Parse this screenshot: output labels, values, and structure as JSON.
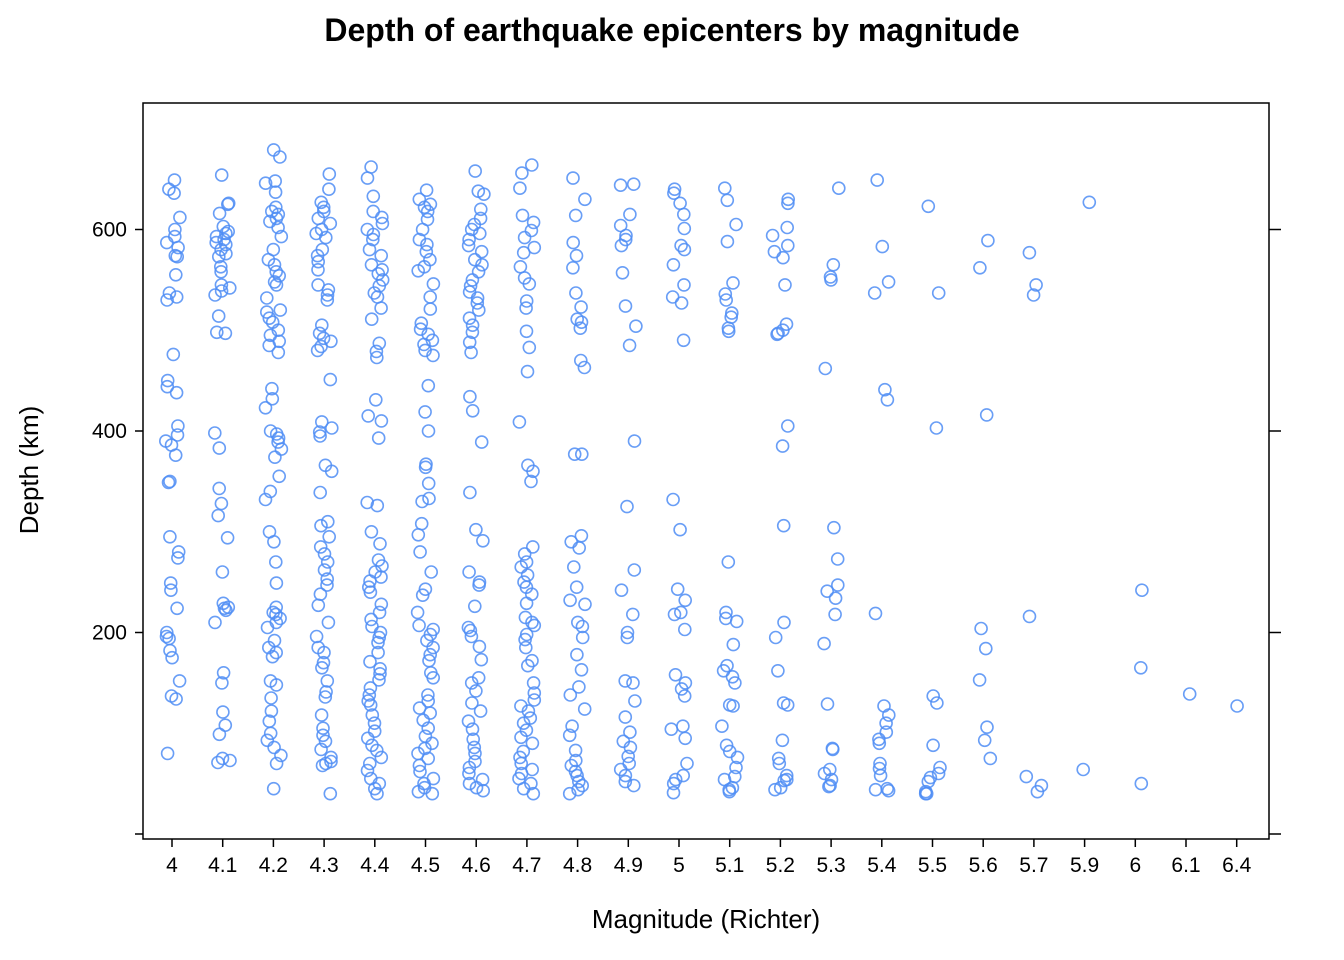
{
  "colors": {
    "point": "#4F8DF5",
    "axis": "#000000",
    "background": "#ffffff"
  },
  "chart_data": {
    "type": "scatter",
    "title": "Depth of earthquake epicenters by magnitude",
    "xlabel": "Magnitude (Richter)",
    "ylabel": "Depth (km)",
    "x_type": "categorical",
    "categories": [
      "4",
      "4.1",
      "4.2",
      "4.3",
      "4.4",
      "4.5",
      "4.6",
      "4.7",
      "4.8",
      "4.9",
      "5",
      "5.1",
      "5.2",
      "5.3",
      "5.4",
      "5.5",
      "5.6",
      "5.7",
      "5.9",
      "6",
      "6.1",
      "6.4"
    ],
    "ylim": [
      0,
      720
    ],
    "yticks": [
      0,
      200,
      400,
      600
    ],
    "ytick_labels": [
      "",
      "200",
      "400",
      "600"
    ],
    "grid": false,
    "points_by_category": {
      "4": [
        649,
        640,
        636,
        612,
        600,
        593,
        587,
        582,
        574,
        573,
        555,
        537,
        533,
        530,
        476,
        450,
        444,
        438,
        405,
        396,
        390,
        386,
        376,
        350,
        349,
        295,
        280,
        274,
        249,
        242,
        224,
        200,
        196,
        194,
        182,
        175,
        152,
        137,
        134,
        80
      ],
      "4.1": [
        654,
        626,
        625,
        616,
        603,
        598,
        596,
        593,
        590,
        587,
        585,
        580,
        576,
        573,
        563,
        558,
        545,
        542,
        539,
        535,
        514,
        498,
        497,
        398,
        383,
        343,
        328,
        316,
        294,
        260,
        229,
        225,
        224,
        222,
        210,
        160,
        150,
        121,
        108,
        99,
        75,
        73,
        71
      ],
      "4.2": [
        679,
        672,
        648,
        646,
        637,
        622,
        618,
        615,
        611,
        608,
        602,
        593,
        580,
        570,
        565,
        558,
        554,
        548,
        545,
        532,
        520,
        518,
        512,
        508,
        500,
        495,
        489,
        485,
        478,
        442,
        432,
        423,
        400,
        397,
        393,
        389,
        382,
        374,
        355,
        340,
        332,
        300,
        290,
        270,
        249,
        225,
        220,
        218,
        214,
        210,
        205,
        192,
        185,
        180,
        176,
        152,
        148,
        135,
        122,
        112,
        100,
        93,
        86,
        78,
        70,
        45
      ],
      "4.3": [
        655,
        640,
        627,
        622,
        618,
        611,
        606,
        600,
        596,
        592,
        580,
        574,
        568,
        560,
        545,
        540,
        535,
        530,
        505,
        497,
        492,
        489,
        484,
        480,
        451,
        409,
        403,
        399,
        395,
        366,
        360,
        339,
        310,
        306,
        295,
        285,
        278,
        270,
        262,
        253,
        247,
        238,
        227,
        210,
        196,
        185,
        180,
        170,
        165,
        152,
        141,
        136,
        118,
        105,
        98,
        92,
        84,
        76,
        72,
        70,
        68,
        40
      ],
      "4.4": [
        662,
        651,
        633,
        618,
        612,
        606,
        600,
        595,
        590,
        580,
        574,
        565,
        560,
        556,
        550,
        544,
        537,
        533,
        522,
        511,
        487,
        479,
        473,
        431,
        415,
        410,
        393,
        329,
        326,
        300,
        288,
        272,
        266,
        260,
        255,
        251,
        245,
        240,
        228,
        220,
        213,
        206,
        200,
        195,
        190,
        180,
        171,
        164,
        159,
        153,
        145,
        138,
        132,
        128,
        118,
        110,
        102,
        95,
        88,
        83,
        76,
        70,
        63,
        55,
        50,
        45,
        40
      ],
      "4.5": [
        639,
        630,
        625,
        622,
        618,
        610,
        600,
        590,
        585,
        578,
        570,
        563,
        559,
        546,
        533,
        521,
        507,
        501,
        496,
        490,
        486,
        480,
        475,
        445,
        419,
        400,
        367,
        364,
        348,
        333,
        330,
        308,
        297,
        280,
        260,
        243,
        237,
        220,
        207,
        203,
        198,
        192,
        185,
        178,
        172,
        160,
        155,
        138,
        132,
        125,
        120,
        113,
        105,
        97,
        90,
        85,
        80,
        75,
        68,
        62,
        55,
        50,
        46,
        42,
        40
      ],
      "4.6": [
        658,
        638,
        635,
        620,
        611,
        605,
        600,
        596,
        590,
        584,
        578,
        570,
        565,
        558,
        550,
        544,
        538,
        532,
        527,
        520,
        512,
        505,
        498,
        488,
        478,
        434,
        420,
        389,
        339,
        302,
        291,
        260,
        250,
        247,
        226,
        205,
        202,
        196,
        186,
        173,
        155,
        150,
        142,
        130,
        122,
        112,
        104,
        94,
        86,
        80,
        72,
        66,
        60,
        54,
        50,
        46,
        43
      ],
      "4.7": [
        664,
        656,
        641,
        614,
        607,
        599,
        592,
        582,
        577,
        563,
        552,
        546,
        529,
        522,
        499,
        483,
        459,
        409,
        366,
        360,
        350,
        285,
        278,
        270,
        265,
        257,
        250,
        245,
        238,
        229,
        215,
        210,
        207,
        198,
        193,
        185,
        172,
        167,
        150,
        140,
        133,
        127,
        122,
        115,
        110,
        103,
        96,
        90,
        82,
        76,
        70,
        64,
        60,
        55,
        50,
        45,
        40
      ],
      "4.8": [
        651,
        630,
        614,
        587,
        574,
        562,
        537,
        523,
        511,
        508,
        502,
        470,
        463,
        377,
        377,
        296,
        290,
        284,
        265,
        245,
        232,
        228,
        210,
        206,
        195,
        178,
        163,
        146,
        138,
        124,
        107,
        98,
        83,
        73,
        68,
        62,
        58,
        52,
        48,
        44,
        40
      ],
      "4.9": [
        645,
        644,
        615,
        604,
        594,
        590,
        584,
        557,
        524,
        504,
        485,
        390,
        325,
        262,
        242,
        218,
        200,
        195,
        152,
        150,
        132,
        116,
        101,
        92,
        86,
        77,
        70,
        64,
        58,
        52,
        48
      ],
      "5": [
        640,
        636,
        626,
        615,
        601,
        584,
        580,
        565,
        545,
        533,
        527,
        490,
        332,
        302,
        243,
        232,
        220,
        218,
        203,
        158,
        150,
        144,
        137,
        107,
        104,
        95,
        70,
        58,
        54,
        50,
        41
      ],
      "5.1": [
        641,
        629,
        605,
        588,
        547,
        536,
        530,
        517,
        513,
        502,
        499,
        270,
        220,
        214,
        211,
        188,
        167,
        162,
        156,
        150,
        128,
        127,
        107,
        88,
        82,
        76,
        66,
        57,
        54,
        46,
        44,
        42
      ],
      "5.2": [
        630,
        626,
        602,
        594,
        584,
        578,
        572,
        545,
        506,
        500,
        497,
        496,
        405,
        385,
        306,
        210,
        195,
        162,
        130,
        128,
        93,
        75,
        70,
        58,
        54,
        53,
        46,
        44
      ],
      "5.3": [
        641,
        565,
        553,
        550,
        462,
        304,
        273,
        247,
        241,
        234,
        218,
        189,
        129,
        85,
        84,
        64,
        60,
        54,
        48,
        47
      ],
      "5.4": [
        649,
        583,
        548,
        537,
        441,
        431,
        219,
        127,
        118,
        110,
        101,
        94,
        90,
        70,
        65,
        58,
        45,
        44,
        43
      ],
      "5.5": [
        623,
        537,
        403,
        137,
        130,
        88,
        66,
        60,
        56,
        52,
        42,
        40,
        40
      ],
      "5.6": [
        589,
        562,
        416,
        204,
        184,
        153,
        106,
        93,
        75
      ],
      "5.7": [
        577,
        545,
        535,
        216,
        57,
        48,
        42
      ],
      "5.9": [
        627,
        64
      ],
      "6": [
        242,
        165,
        50
      ],
      "6.1": [
        139
      ],
      "6.4": [
        127
      ]
    }
  }
}
